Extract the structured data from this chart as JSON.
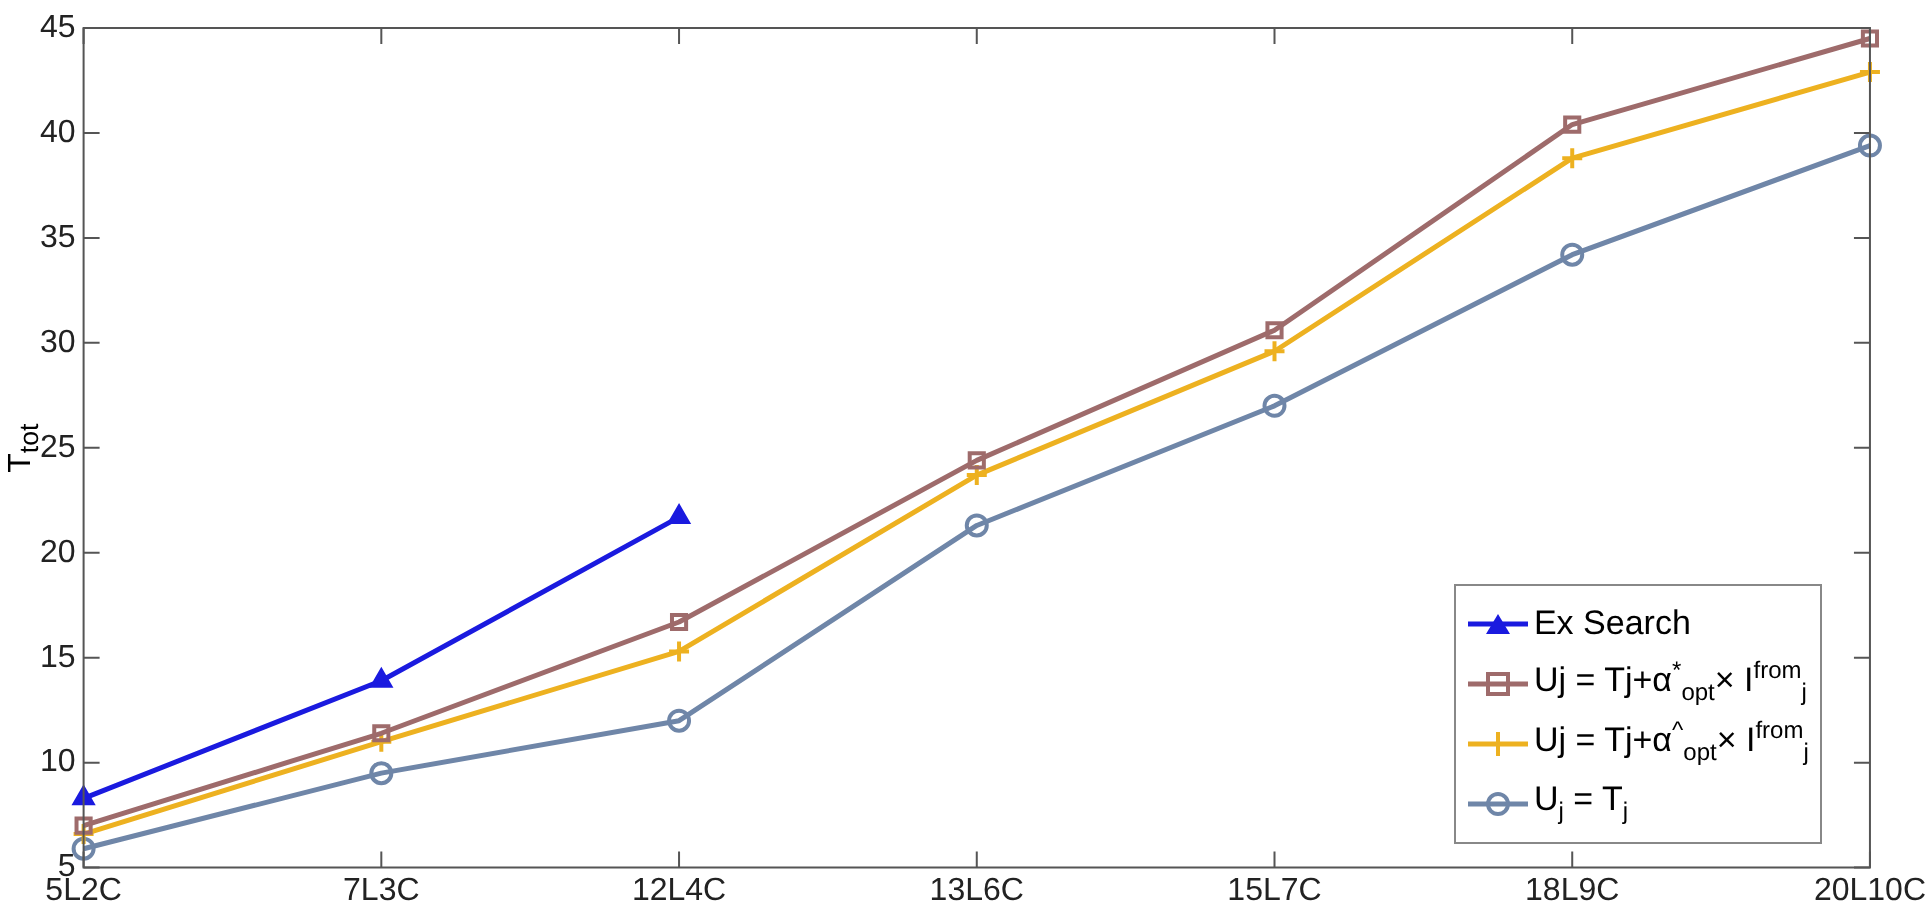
{
  "chart_data": {
    "type": "line",
    "ylabel": "T$_{tot}$",
    "categories": [
      "5L2C",
      "7L3C",
      "12L4C",
      "13L6C",
      "15L7C",
      "18L9C",
      "20L10C"
    ],
    "ylim": [
      5,
      45
    ],
    "yticks": [
      5,
      10,
      15,
      20,
      25,
      30,
      35,
      40,
      45
    ],
    "grid": false,
    "legend": "bottom right",
    "line_style": "solid",
    "series": [
      {
        "name": "Ex Search",
        "color": "#1a1adf",
        "marker": "triangle",
        "values": [
          8.3,
          13.9,
          21.7,
          null,
          null,
          null,
          null
        ]
      },
      {
        "name": "Uj = Tj+α$^{*}$$_{opt}$× I$^{from}$$_{j}$",
        "color": "#9e6b6b",
        "marker": "square",
        "values": [
          7.0,
          11.4,
          16.7,
          24.4,
          30.6,
          40.4,
          44.5
        ]
      },
      {
        "name": "Uj = Tj+α$^{^}$$_{opt}$× I$^{from}$$_{j}$",
        "color": "#edb120",
        "marker": "cross",
        "values": [
          6.6,
          11.0,
          15.3,
          23.7,
          29.6,
          38.8,
          42.9
        ]
      },
      {
        "name": "U$_{j}$ = T$_{j}$",
        "color": "#6f86a8",
        "marker": "circle",
        "values": [
          5.9,
          9.5,
          12.0,
          21.3,
          27.0,
          34.2,
          39.4
        ]
      }
    ]
  }
}
